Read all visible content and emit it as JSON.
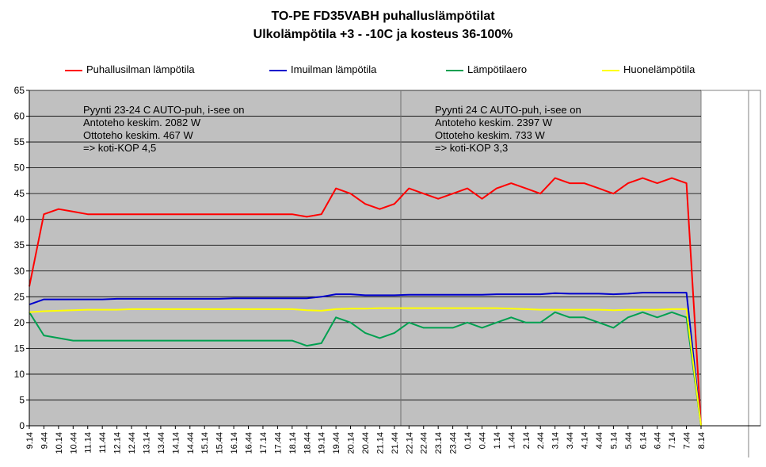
{
  "chart_data": {
    "type": "line",
    "title": "TO-PE FD35VABH puhalluslämpötilat",
    "subtitle": "Ulkolämpötila +3 - -10C ja kosteus 36-100%",
    "ylim": [
      0,
      65
    ],
    "yticks": [
      0,
      5,
      10,
      15,
      20,
      25,
      30,
      35,
      40,
      45,
      50,
      55,
      60,
      65
    ],
    "grid": true,
    "legend_position": "top",
    "x_categories": [
      "9.14",
      "9.44",
      "10.14",
      "10.44",
      "11.14",
      "11.44",
      "12.14",
      "12.44",
      "13.14",
      "13.44",
      "14.14",
      "14.44",
      "15.14",
      "15.44",
      "16.14",
      "16.44",
      "17.14",
      "17.44",
      "18.14",
      "18.44",
      "19.14",
      "19.44",
      "20.14",
      "20.44",
      "21.14",
      "21.44",
      "22.14",
      "22.44",
      "23.14",
      "23.44",
      "0.14",
      "0.44",
      "1.14",
      "1.44",
      "2.14",
      "2.44",
      "3.14",
      "3.44",
      "4.14",
      "4.44",
      "5.14",
      "5.44",
      "6.14",
      "6.44",
      "7.14",
      "7.44",
      "8.14"
    ],
    "series": [
      {
        "name": "Puhallusilman lämpötila",
        "color": "#ff0000",
        "values": [
          27,
          41,
          42,
          41.5,
          41,
          41,
          41,
          41,
          41,
          41,
          41,
          41,
          41,
          41,
          41,
          41,
          41,
          41,
          41,
          40.5,
          41,
          46,
          45,
          43,
          42,
          43,
          46,
          45,
          44,
          45,
          46,
          44,
          46,
          47,
          46,
          45,
          48,
          47,
          47,
          46,
          45,
          47,
          48,
          47,
          48,
          47,
          0
        ]
      },
      {
        "name": "Imuilman lämpötila",
        "color": "#0000cc",
        "values": [
          23.5,
          24.5,
          24.5,
          24.5,
          24.5,
          24.5,
          24.6,
          24.6,
          24.6,
          24.6,
          24.6,
          24.6,
          24.6,
          24.6,
          24.7,
          24.7,
          24.7,
          24.7,
          24.7,
          24.7,
          25,
          25.5,
          25.5,
          25.3,
          25.3,
          25.3,
          25.4,
          25.4,
          25.4,
          25.4,
          25.4,
          25.4,
          25.5,
          25.5,
          25.5,
          25.5,
          25.7,
          25.6,
          25.6,
          25.6,
          25.5,
          25.6,
          25.8,
          25.8,
          25.8,
          25.8,
          0
        ]
      },
      {
        "name": "Lämpötilaero",
        "color": "#00a050",
        "values": [
          22,
          17.5,
          17,
          16.5,
          16.5,
          16.5,
          16.5,
          16.5,
          16.5,
          16.5,
          16.5,
          16.5,
          16.5,
          16.5,
          16.5,
          16.5,
          16.5,
          16.5,
          16.5,
          15.5,
          16,
          21,
          20,
          18,
          17,
          18,
          20,
          19,
          19,
          19,
          20,
          19,
          20,
          21,
          20,
          20,
          22,
          21,
          21,
          20,
          19,
          21,
          22,
          21,
          22,
          21,
          0
        ]
      },
      {
        "name": "Huonelämpötila",
        "color": "#ffff00",
        "values": [
          22,
          22.2,
          22.3,
          22.4,
          22.5,
          22.5,
          22.5,
          22.6,
          22.6,
          22.6,
          22.6,
          22.6,
          22.6,
          22.6,
          22.6,
          22.6,
          22.6,
          22.6,
          22.6,
          22.4,
          22.3,
          22.6,
          22.7,
          22.7,
          22.8,
          22.8,
          22.8,
          22.8,
          22.8,
          22.8,
          22.8,
          22.8,
          22.8,
          22.7,
          22.6,
          22.5,
          22.5,
          22.5,
          22.5,
          22.5,
          22.4,
          22.5,
          22.5,
          22.5,
          22.6,
          22.6,
          0
        ]
      }
    ],
    "annotations": [
      {
        "lines": [
          "Pyynti 23-24 C AUTO-puh, i-see on",
          "Antoteho keskim. 2082 W",
          "Ottoteho keskim. 467 W",
          "=> koti-KOP 4,5"
        ]
      },
      {
        "lines": [
          "Pyynti 24 C AUTO-puh, i-see on",
          "Antoteho keskim. 2397 W",
          "Ottoteho keskim. 733 W",
          "=> koti-KOP 3,3"
        ]
      }
    ]
  }
}
